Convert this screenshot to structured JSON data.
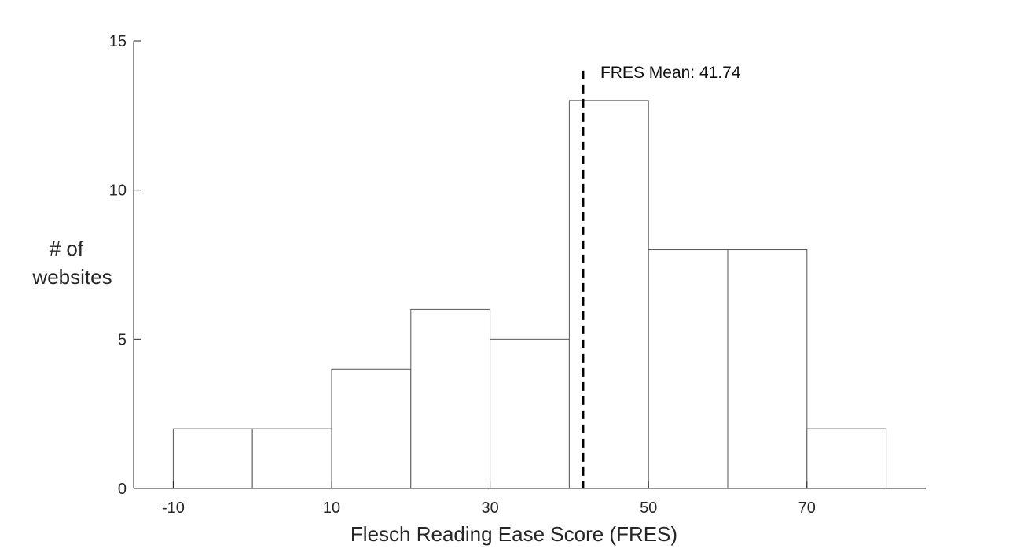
{
  "chart_data": {
    "type": "bar",
    "bin_edges": [
      -10,
      0,
      10,
      20,
      30,
      40,
      50,
      60,
      70,
      80
    ],
    "values": [
      2,
      2,
      4,
      6,
      5,
      13,
      8,
      8,
      2
    ],
    "xlabel": "Flesch Reading Ease Score (FRES)",
    "ylabel_lines": [
      "# of",
      "websites"
    ],
    "x_ticks": [
      -10,
      10,
      30,
      50,
      70
    ],
    "y_ticks": [
      0,
      5,
      10,
      15
    ],
    "xlim": [
      -15,
      85
    ],
    "ylim": [
      0,
      15
    ],
    "mean": {
      "value": 41.74,
      "label": "FRES Mean: 41.74",
      "line_top_y": 14
    },
    "grid": false,
    "bar_fill": "#ffffff",
    "bar_edge": "#555555",
    "axis_color": "#262626",
    "mean_line_color": "#000000"
  }
}
